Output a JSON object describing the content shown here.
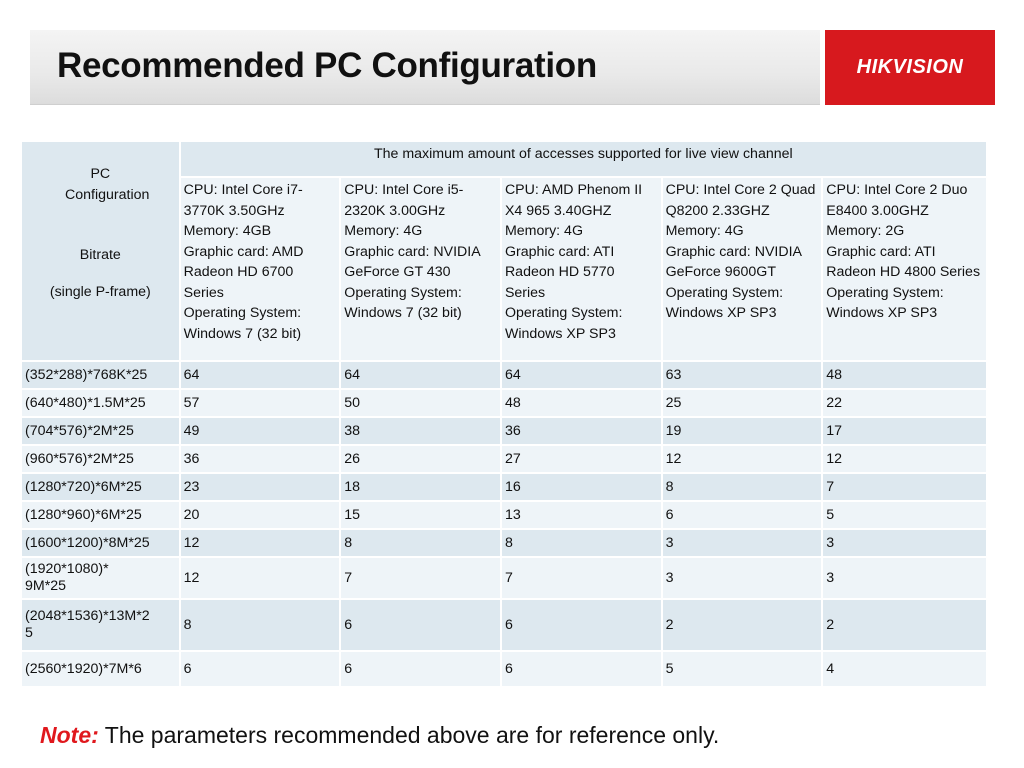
{
  "header": {
    "title": "Recommended PC Configuration",
    "logo_text": "HIKVISION",
    "logo_color": "#d7191e"
  },
  "table": {
    "corner": {
      "line1": "PC Configuration",
      "line2": "Bitrate",
      "line3": "(single P-frame)"
    },
    "header_main": "The maximum amount of accesses supported for live view channel",
    "columns": [
      "CPU: Intel Core i7-3770K 3.50GHz\nMemory: 4GB\nGraphic card: AMD Radeon HD 6700 Series\nOperating System: Windows 7 (32 bit)",
      "CPU: Intel Core i5-2320K 3.00GHz\nMemory: 4G\nGraphic card: NVIDIA GeForce GT 430\nOperating System: Windows 7 (32 bit)",
      "CPU: AMD Phenom II X4 965 3.40GHZ\nMemory: 4G\nGraphic card: ATI Radeon HD 5770 Series\nOperating System: Windows XP SP3",
      "CPU: Intel Core 2 Quad Q8200 2.33GHZ\nMemory: 4G\nGraphic card: NVIDIA GeForce 9600GT\nOperating System: Windows XP SP3",
      "CPU: Intel Core 2 Duo E8400 3.00GHZ\nMemory: 2G\nGraphic card: ATI Radeon HD 4800 Series\nOperating System: Windows XP SP3"
    ],
    "rows": [
      {
        "label": "(352*288)*768K*25",
        "values": [
          "64",
          "64",
          "64",
          "63",
          "48"
        ]
      },
      {
        "label": "(640*480)*1.5M*25",
        "values": [
          "57",
          "50",
          "48",
          "25",
          "22"
        ]
      },
      {
        "label": "(704*576)*2M*25",
        "values": [
          "49",
          "38",
          "36",
          "19",
          "17"
        ]
      },
      {
        "label": "(960*576)*2M*25",
        "values": [
          "36",
          "26",
          "27",
          "12",
          "12"
        ]
      },
      {
        "label": "(1280*720)*6M*25",
        "values": [
          "23",
          "18",
          "16",
          "8",
          "7"
        ]
      },
      {
        "label": "(1280*960)*6M*25",
        "values": [
          "20",
          "15",
          "13",
          "6",
          "5"
        ]
      },
      {
        "label": "(1600*1200)*8M*25",
        "values": [
          "12",
          "8",
          "8",
          "3",
          "3"
        ]
      },
      {
        "label": "(1920*1080)*\n9M*25",
        "values": [
          "12",
          "7",
          "7",
          "3",
          "3"
        ]
      },
      {
        "label": "(2048*1536)*13M*2\n5",
        "values": [
          "8",
          "6",
          "6",
          "2",
          "2"
        ]
      },
      {
        "label": "(2560*1920)*7M*6",
        "values": [
          "6",
          "6",
          "6",
          "5",
          "4"
        ]
      }
    ]
  },
  "note": {
    "label": "Note:",
    "text": "The parameters recommended above are for reference only."
  }
}
